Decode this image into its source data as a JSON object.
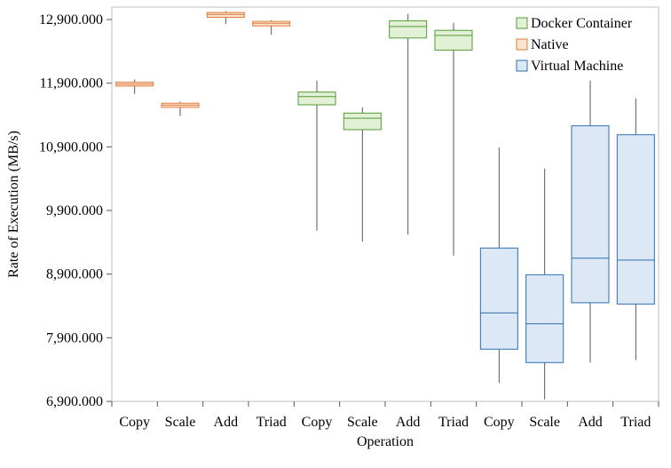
{
  "chart_data": {
    "type": "boxplot",
    "xlabel": "Operation",
    "ylabel": "Rate of Execution (MB/s)",
    "ylim": [
      6900000,
      13300000
    ],
    "yticks": [
      6900000,
      7900000,
      8900000,
      9900000,
      10900000,
      11900000,
      12900000
    ],
    "ytick_labels": [
      "6,900.000",
      "7,900.000",
      "8,900.000",
      "9,900.000",
      "10,900.000",
      "11,900.000",
      "12,900.000"
    ],
    "grid": false,
    "legend_position": "top-right",
    "categories": [
      "Copy",
      "Scale",
      "Add",
      "Triad",
      "Copy",
      "Scale",
      "Add",
      "Triad",
      "Copy",
      "Scale",
      "Add",
      "Triad"
    ],
    "series": [
      {
        "name": "Native",
        "fill": "#fbe3d0",
        "stroke": "#e07b39",
        "boxes": [
          {
            "category_index": 0,
            "min": 11730000,
            "q1": 11855000,
            "median": 11885000,
            "q3": 11915000,
            "max": 11960000
          },
          {
            "category_index": 1,
            "min": 11380000,
            "q1": 11520000,
            "median": 11555000,
            "q3": 11585000,
            "max": 11610000
          },
          {
            "category_index": 2,
            "min": 12830000,
            "q1": 12935000,
            "median": 12980000,
            "q3": 13010000,
            "max": 13030000
          },
          {
            "category_index": 3,
            "min": 12660000,
            "q1": 12800000,
            "median": 12840000,
            "q3": 12870000,
            "max": 12890000
          }
        ]
      },
      {
        "name": "Docker Container",
        "fill": "#e2f0d5",
        "stroke": "#549a36",
        "boxes": [
          {
            "category_index": 4,
            "min": 9580000,
            "q1": 11560000,
            "median": 11690000,
            "q3": 11760000,
            "max": 11940000
          },
          {
            "category_index": 5,
            "min": 9410000,
            "q1": 11170000,
            "median": 11350000,
            "q3": 11430000,
            "max": 11520000
          },
          {
            "category_index": 6,
            "min": 9520000,
            "q1": 12610000,
            "median": 12790000,
            "q3": 12880000,
            "max": 12990000
          },
          {
            "category_index": 7,
            "min": 9190000,
            "q1": 12420000,
            "median": 12650000,
            "q3": 12730000,
            "max": 12850000
          }
        ]
      },
      {
        "name": "Virtual Machine",
        "fill": "#dce8f5",
        "stroke": "#2e6fad",
        "boxes": [
          {
            "category_index": 8,
            "min": 7190000,
            "q1": 7720000,
            "median": 8290000,
            "q3": 9310000,
            "max": 10890000
          },
          {
            "category_index": 9,
            "min": 6930000,
            "q1": 7510000,
            "median": 8120000,
            "q3": 8890000,
            "max": 10560000
          },
          {
            "category_index": 10,
            "min": 7510000,
            "q1": 8450000,
            "median": 9150000,
            "q3": 11230000,
            "max": 11940000
          },
          {
            "category_index": 11,
            "min": 7550000,
            "q1": 8430000,
            "median": 9120000,
            "q3": 11090000,
            "max": 11660000
          }
        ]
      }
    ],
    "legend": [
      {
        "label": "Docker Container",
        "fill": "#e2f0d5",
        "stroke": "#549a36"
      },
      {
        "label": "Native",
        "fill": "#fbe3d0",
        "stroke": "#e07b39"
      },
      {
        "label": "Virtual Machine",
        "fill": "#dce8f5",
        "stroke": "#2e6fad"
      }
    ]
  }
}
